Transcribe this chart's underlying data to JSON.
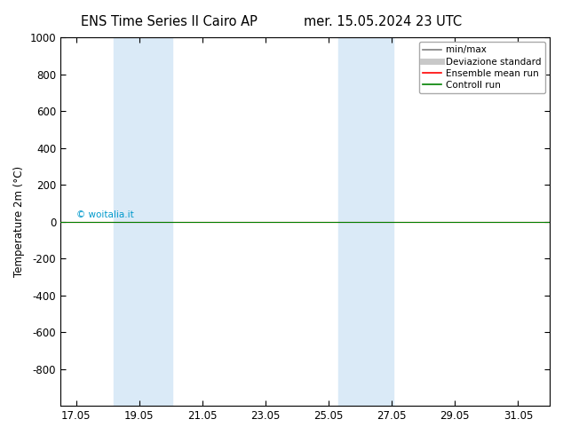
{
  "title_left": "ENS Time Series Il Cairo AP",
  "title_right": "mer. 15.05.2024 23 UTC",
  "ylabel": "Temperature 2m (°C)",
  "ylim_top": -1000,
  "ylim_bottom": 1000,
  "y_ticks": [
    -800,
    -600,
    -400,
    -200,
    0,
    200,
    400,
    600,
    800,
    1000
  ],
  "x_tick_labels": [
    "17.05",
    "19.05",
    "21.05",
    "23.05",
    "25.05",
    "27.05",
    "29.05",
    "31.05"
  ],
  "x_tick_positions": [
    17,
    19,
    21,
    23,
    25,
    27,
    29,
    31
  ],
  "xlim_left": 16.5,
  "xlim_right": 32.0,
  "shaded_regions": [
    {
      "start": 18.2,
      "end": 20.05,
      "color": "#daeaf7",
      "alpha": 1.0
    },
    {
      "start": 25.3,
      "end": 27.05,
      "color": "#daeaf7",
      "alpha": 1.0
    }
  ],
  "line_y": 0,
  "ensemble_color": "#ff0000",
  "control_color": "#008000",
  "minmax_color": "#808080",
  "devstd_color": "#c8c8c8",
  "watermark": "© woitalia.it",
  "watermark_color": "#0099cc",
  "background_color": "#ffffff",
  "plot_bg_color": "#ffffff",
  "legend_labels": [
    "min/max",
    "Deviazione standard",
    "Ensemble mean run",
    "Controll run"
  ],
  "title_fontsize": 10.5,
  "tick_fontsize": 8.5,
  "ylabel_fontsize": 8.5,
  "legend_fontsize": 7.5
}
